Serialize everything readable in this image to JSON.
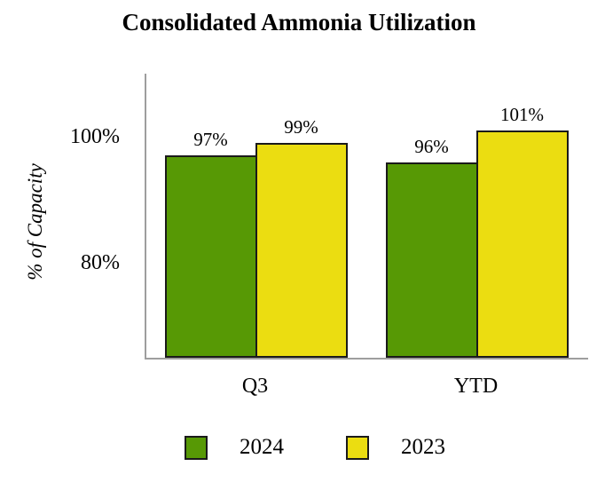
{
  "chart_data": {
    "type": "bar",
    "title": "Consolidated Ammonia Utilization",
    "categories": [
      "Q3",
      "YTD"
    ],
    "series": [
      {
        "name": "2024",
        "color": "#579905",
        "values": [
          97,
          96
        ]
      },
      {
        "name": "2023",
        "color": "#EBDD11",
        "values": [
          99,
          101
        ]
      }
    ],
    "value_suffix": "%",
    "ylabel": "% of Capacity",
    "yticks": [
      {
        "value": 100,
        "label": "100%"
      },
      {
        "value": 80,
        "label": "80%"
      }
    ],
    "ylim": [
      65,
      110
    ],
    "grid": false,
    "legend": {
      "position": "bottom",
      "entries": [
        "2024",
        "2023"
      ]
    }
  },
  "colors": {
    "background": "#ffffff",
    "text": "#000000",
    "axis": "#9e9e9e",
    "bar_border": "#1a1a1a",
    "series_2024": "#579905",
    "series_2023": "#EBDD11"
  }
}
